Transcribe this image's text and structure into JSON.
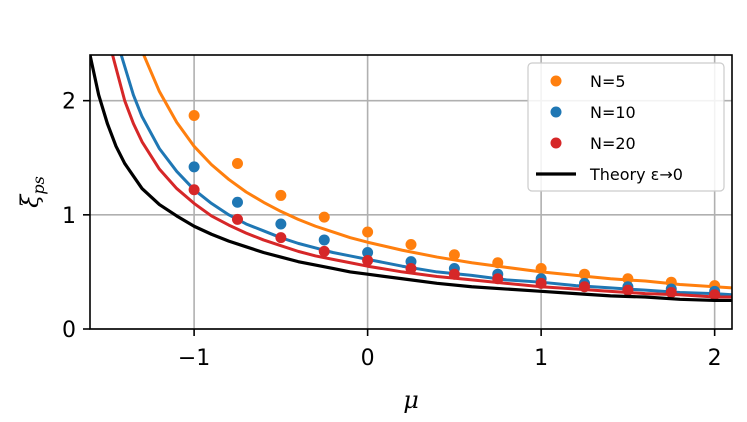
{
  "chart_data": {
    "type": "line",
    "xlabel": "μ",
    "ylabel_main": "ξ",
    "ylabel_sub": "ps",
    "xlim": [
      -1.6,
      2.1
    ],
    "ylim": [
      0,
      2.4
    ],
    "xticks": [
      -1,
      0,
      1,
      2
    ],
    "xtick_labels": [
      "−1",
      "0",
      "1",
      "2"
    ],
    "yticks": [
      0,
      1,
      2
    ],
    "ytick_labels": [
      "0",
      "1",
      "2"
    ],
    "grid": true,
    "legend_position": "top-right",
    "series": [
      {
        "name": "N=5",
        "color": "#ff7f0e",
        "points": {
          "x": [
            -1,
            -0.75,
            -0.5,
            -0.25,
            0,
            0.25,
            0.5,
            0.75,
            1,
            1.25,
            1.5,
            1.75,
            2
          ],
          "y": [
            1.87,
            1.45,
            1.17,
            0.98,
            0.85,
            0.74,
            0.65,
            0.58,
            0.53,
            0.48,
            0.44,
            0.41,
            0.38
          ]
        },
        "curve": {
          "x": [
            -1.29,
            -1.2,
            -1.1,
            -1.0,
            -0.9,
            -0.8,
            -0.7,
            -0.6,
            -0.5,
            -0.4,
            -0.3,
            -0.2,
            -0.1,
            0,
            0.2,
            0.4,
            0.6,
            0.8,
            1.0,
            1.2,
            1.4,
            1.6,
            1.8,
            2.0,
            2.1
          ],
          "y": [
            2.4,
            2.08,
            1.81,
            1.6,
            1.44,
            1.31,
            1.2,
            1.11,
            1.03,
            0.96,
            0.9,
            0.85,
            0.8,
            0.76,
            0.69,
            0.63,
            0.58,
            0.54,
            0.5,
            0.47,
            0.44,
            0.42,
            0.39,
            0.37,
            0.36
          ]
        }
      },
      {
        "name": "N=10",
        "color": "#1f77b4",
        "points": {
          "x": [
            -1,
            -0.75,
            -0.5,
            -0.25,
            0,
            0.25,
            0.5,
            0.75,
            1,
            1.25,
            1.5,
            1.75,
            2
          ],
          "y": [
            1.42,
            1.11,
            0.92,
            0.78,
            0.67,
            0.59,
            0.53,
            0.48,
            0.44,
            0.4,
            0.37,
            0.35,
            0.33
          ]
        },
        "curve": {
          "x": [
            -1.42,
            -1.35,
            -1.3,
            -1.2,
            -1.1,
            -1.0,
            -0.9,
            -0.8,
            -0.7,
            -0.6,
            -0.5,
            -0.4,
            -0.3,
            -0.2,
            -0.1,
            0,
            0.2,
            0.4,
            0.6,
            0.8,
            1.0,
            1.2,
            1.4,
            1.6,
            1.8,
            2.0,
            2.1
          ],
          "y": [
            2.4,
            2.05,
            1.86,
            1.58,
            1.38,
            1.22,
            1.1,
            1.0,
            0.92,
            0.86,
            0.8,
            0.75,
            0.71,
            0.67,
            0.64,
            0.61,
            0.55,
            0.5,
            0.47,
            0.43,
            0.41,
            0.38,
            0.36,
            0.34,
            0.32,
            0.31,
            0.3
          ]
        }
      },
      {
        "name": "N=20",
        "color": "#d62728",
        "points": {
          "x": [
            -1,
            -0.75,
            -0.5,
            -0.25,
            0,
            0.25,
            0.5,
            0.75,
            1,
            1.25,
            1.5,
            1.75,
            2
          ],
          "y": [
            1.22,
            0.96,
            0.8,
            0.68,
            0.6,
            0.53,
            0.48,
            0.44,
            0.4,
            0.37,
            0.34,
            0.32,
            0.3
          ]
        },
        "curve": {
          "x": [
            -1.47,
            -1.4,
            -1.35,
            -1.3,
            -1.2,
            -1.1,
            -1.0,
            -0.9,
            -0.8,
            -0.7,
            -0.6,
            -0.5,
            -0.4,
            -0.3,
            -0.2,
            -0.1,
            0,
            0.2,
            0.4,
            0.6,
            0.8,
            1.0,
            1.2,
            1.4,
            1.6,
            1.8,
            2.0,
            2.1
          ],
          "y": [
            2.4,
            2.0,
            1.8,
            1.64,
            1.4,
            1.23,
            1.1,
            0.99,
            0.91,
            0.84,
            0.78,
            0.73,
            0.68,
            0.64,
            0.61,
            0.58,
            0.55,
            0.5,
            0.46,
            0.43,
            0.4,
            0.37,
            0.35,
            0.33,
            0.31,
            0.3,
            0.28,
            0.28
          ]
        }
      },
      {
        "name": "Theory ε→0",
        "color": "#000000",
        "curve": {
          "x": [
            -1.6,
            -1.55,
            -1.5,
            -1.45,
            -1.4,
            -1.3,
            -1.2,
            -1.1,
            -1.0,
            -0.9,
            -0.8,
            -0.7,
            -0.6,
            -0.5,
            -0.4,
            -0.3,
            -0.2,
            -0.1,
            0,
            0.2,
            0.4,
            0.6,
            0.8,
            1.0,
            1.2,
            1.4,
            1.6,
            1.8,
            2.0,
            2.1
          ],
          "y": [
            2.4,
            2.05,
            1.8,
            1.6,
            1.45,
            1.23,
            1.09,
            0.99,
            0.9,
            0.83,
            0.77,
            0.72,
            0.67,
            0.63,
            0.59,
            0.56,
            0.53,
            0.5,
            0.48,
            0.44,
            0.4,
            0.37,
            0.35,
            0.33,
            0.31,
            0.29,
            0.28,
            0.26,
            0.25,
            0.25
          ]
        }
      }
    ]
  }
}
